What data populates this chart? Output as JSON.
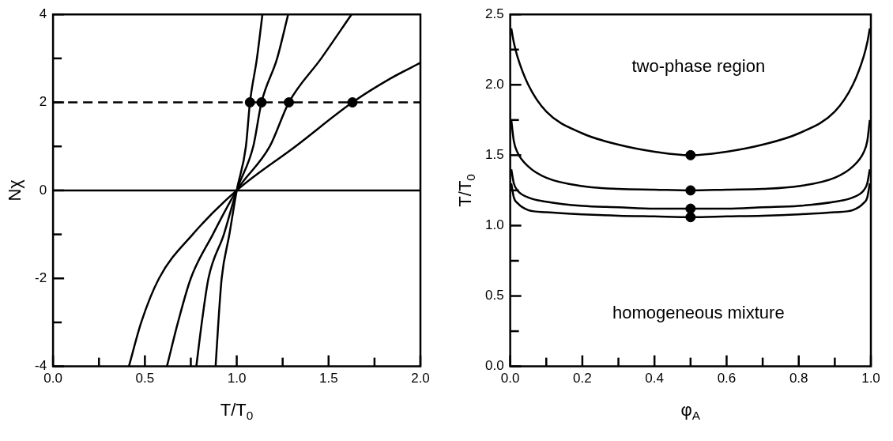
{
  "chart_data": [
    {
      "type": "line",
      "xlabel": "T/T$_{0}$",
      "ylabel": "Nχ",
      "xlim": [
        0,
        2
      ],
      "ylim": [
        -4,
        4
      ],
      "marker": "none",
      "grid": false,
      "legend": false,
      "xticks": [
        {
          "value": 0,
          "label": "0.0"
        },
        {
          "value": 0.25,
          "label": null
        },
        {
          "value": 0.5,
          "label": "0.5"
        },
        {
          "value": 0.75,
          "label": null
        },
        {
          "value": 1,
          "label": "1.0"
        },
        {
          "value": 1.25,
          "label": null
        },
        {
          "value": 1.5,
          "label": "1.5"
        },
        {
          "value": 1.75,
          "label": null
        },
        {
          "value": 2,
          "label": "2.0"
        }
      ],
      "yticks": [
        -4,
        {
          "value": -3,
          "label": null
        },
        -2,
        {
          "value": -1,
          "label": null
        },
        0,
        {
          "value": 1,
          "label": null
        },
        2,
        {
          "value": 3,
          "label": null
        },
        4
      ],
      "ref_lines": [
        {
          "axis": "y",
          "value": 2,
          "color": "#000000",
          "line_style": "dashed"
        },
        {
          "axis": "y",
          "value": 0,
          "color": "#000000",
          "line_style": "solid"
        }
      ],
      "series": [
        {
          "color": "#000000",
          "x": [
            0.885,
            0.9,
            0.918,
            0.96,
            1,
            1.05,
            1.072,
            1.11,
            1.14
          ],
          "values": [
            -4,
            -3,
            -2,
            -1,
            0,
            1,
            2,
            3,
            4
          ]
        },
        {
          "color": "#000000",
          "x": [
            0.78,
            0.81,
            0.846,
            0.93,
            1,
            1.09,
            1.135,
            1.22,
            1.28
          ],
          "values": [
            -4,
            -3,
            -2,
            -1,
            0,
            1,
            2,
            3,
            4
          ]
        },
        {
          "color": "#000000",
          "x": [
            0.62,
            0.68,
            0.75,
            0.87,
            1,
            1.18,
            1.284,
            1.46,
            1.625
          ],
          "values": [
            -4,
            -3,
            -2,
            -1,
            0,
            1,
            2,
            3,
            4
          ]
        },
        {
          "color": "#000000",
          "x": [
            0.413,
            0.48,
            0.577,
            0.76,
            1,
            1.32,
            1.63,
            1.84,
            2.0
          ],
          "values": [
            -4,
            -3,
            -2,
            -1,
            0,
            1,
            2,
            2.55,
            2.9
          ]
        },
        {
          "type": "scatter",
          "marker": "circle",
          "color": "#000000",
          "x": [
            1.072,
            1.135,
            1.284,
            1.63
          ],
          "values": [
            2,
            2,
            2,
            2
          ]
        }
      ]
    },
    {
      "type": "line",
      "xlabel": "φ$_{A}$",
      "ylabel": "T/T$_{0}$",
      "xlim": [
        0,
        1
      ],
      "ylim": [
        0,
        2.5
      ],
      "marker": "none",
      "grid": false,
      "legend": false,
      "xticks": [
        {
          "value": 0,
          "label": "0.0"
        },
        {
          "value": 0.1,
          "label": null
        },
        {
          "value": 0.2,
          "label": "0.2"
        },
        {
          "value": 0.3,
          "label": null
        },
        {
          "value": 0.4,
          "label": "0.4"
        },
        {
          "value": 0.5,
          "label": null
        },
        {
          "value": 0.6,
          "label": "0.6"
        },
        {
          "value": 0.7,
          "label": null
        },
        {
          "value": 0.8,
          "label": "0.8"
        },
        {
          "value": 0.9,
          "label": null
        },
        {
          "value": 1,
          "label": "1.0"
        }
      ],
      "yticks": [
        {
          "value": 0,
          "label": "0.0"
        },
        {
          "value": 0.25,
          "label": null
        },
        {
          "value": 0.5,
          "label": "0.5"
        },
        {
          "value": 0.75,
          "label": null
        },
        {
          "value": 1,
          "label": "1.0"
        },
        {
          "value": 1.25,
          "label": null
        },
        {
          "value": 1.5,
          "label": "1.5"
        },
        {
          "value": 1.75,
          "label": null
        },
        {
          "value": 2,
          "label": "2.0"
        },
        {
          "value": 2.25,
          "label": null
        },
        {
          "value": 2.5,
          "label": "2.5"
        }
      ],
      "annotations": [
        "two-phase region",
        "homogeneous mixture"
      ],
      "series": [
        {
          "color": "#000000",
          "x": [
            0.003,
            0.01,
            0.02,
            0.05,
            0.1,
            0.2,
            0.3,
            0.4,
            0.5,
            0.6,
            0.7,
            0.8,
            0.9,
            0.95,
            0.98,
            0.99,
            0.997
          ],
          "values": [
            2.4,
            2.3,
            2.2,
            2.0,
            1.81,
            1.655,
            1.575,
            1.525,
            1.5,
            1.525,
            1.575,
            1.655,
            1.81,
            2.0,
            2.2,
            2.3,
            2.4
          ]
        },
        {
          "color": "#000000",
          "x": [
            0.003,
            0.01,
            0.02,
            0.05,
            0.1,
            0.2,
            0.3,
            0.4,
            0.5,
            0.6,
            0.7,
            0.8,
            0.9,
            0.95,
            0.98,
            0.99,
            0.997
          ],
          "values": [
            1.75,
            1.6,
            1.52,
            1.42,
            1.34,
            1.28,
            1.26,
            1.255,
            1.25,
            1.255,
            1.26,
            1.28,
            1.34,
            1.42,
            1.52,
            1.6,
            1.75
          ]
        },
        {
          "color": "#000000",
          "x": [
            0.003,
            0.01,
            0.02,
            0.05,
            0.1,
            0.2,
            0.3,
            0.4,
            0.5,
            0.6,
            0.7,
            0.8,
            0.9,
            0.95,
            0.98,
            0.99,
            0.997
          ],
          "values": [
            1.4,
            1.3,
            1.25,
            1.2,
            1.17,
            1.14,
            1.13,
            1.12,
            1.12,
            1.12,
            1.13,
            1.14,
            1.17,
            1.2,
            1.25,
            1.3,
            1.4
          ]
        },
        {
          "color": "#000000",
          "x": [
            0.003,
            0.01,
            0.02,
            0.05,
            0.1,
            0.2,
            0.3,
            0.4,
            0.5,
            0.6,
            0.7,
            0.8,
            0.9,
            0.95,
            0.98,
            0.99,
            0.997
          ],
          "values": [
            1.3,
            1.2,
            1.16,
            1.11,
            1.095,
            1.08,
            1.07,
            1.065,
            1.06,
            1.065,
            1.07,
            1.08,
            1.095,
            1.11,
            1.16,
            1.2,
            1.3
          ]
        },
        {
          "type": "scatter",
          "marker": "circle",
          "color": "#000000",
          "x": [
            0.5,
            0.5,
            0.5,
            0.5
          ],
          "values": [
            1.5,
            1.25,
            1.12,
            1.06
          ]
        }
      ]
    }
  ]
}
